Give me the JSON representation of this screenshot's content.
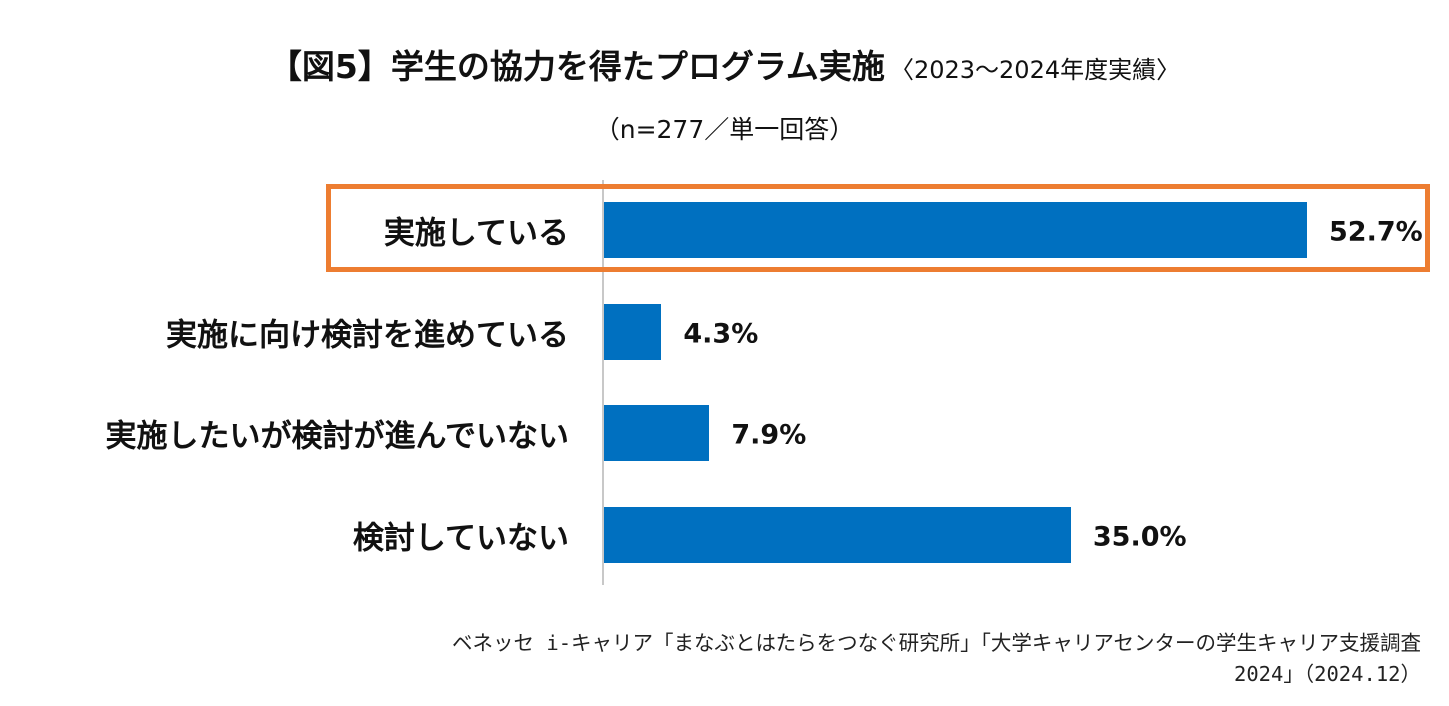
{
  "chart_data": {
    "type": "bar",
    "orientation": "horizontal",
    "title": "【図5】学生の協力を得たプログラム実施",
    "title_note": "〈2023～2024年度実績〉",
    "subtitle": "（n=277／単一回答）",
    "categories": [
      "実施している",
      "実施に向け検討を進めている",
      "実施したいが検討が進んでいない",
      "検討していない"
    ],
    "values": [
      52.7,
      4.3,
      7.9,
      35.0
    ],
    "value_labels": [
      "52.7%",
      "4.3%",
      "7.9%",
      "35.0%"
    ],
    "unit": "%",
    "xlim": [
      0,
      52.7
    ],
    "highlighted_category": "実施している",
    "colors": {
      "bar": "#0070c0",
      "highlight": "#ed7d31",
      "axis": "#c8c8c8"
    }
  },
  "source": {
    "line1": "ベネッセ i-キャリア「まなぶとはたらをつなぐ研究所」「大学キャリアセンターの学生キャリア支援調査",
    "line2": "2024」（2024.12）"
  }
}
